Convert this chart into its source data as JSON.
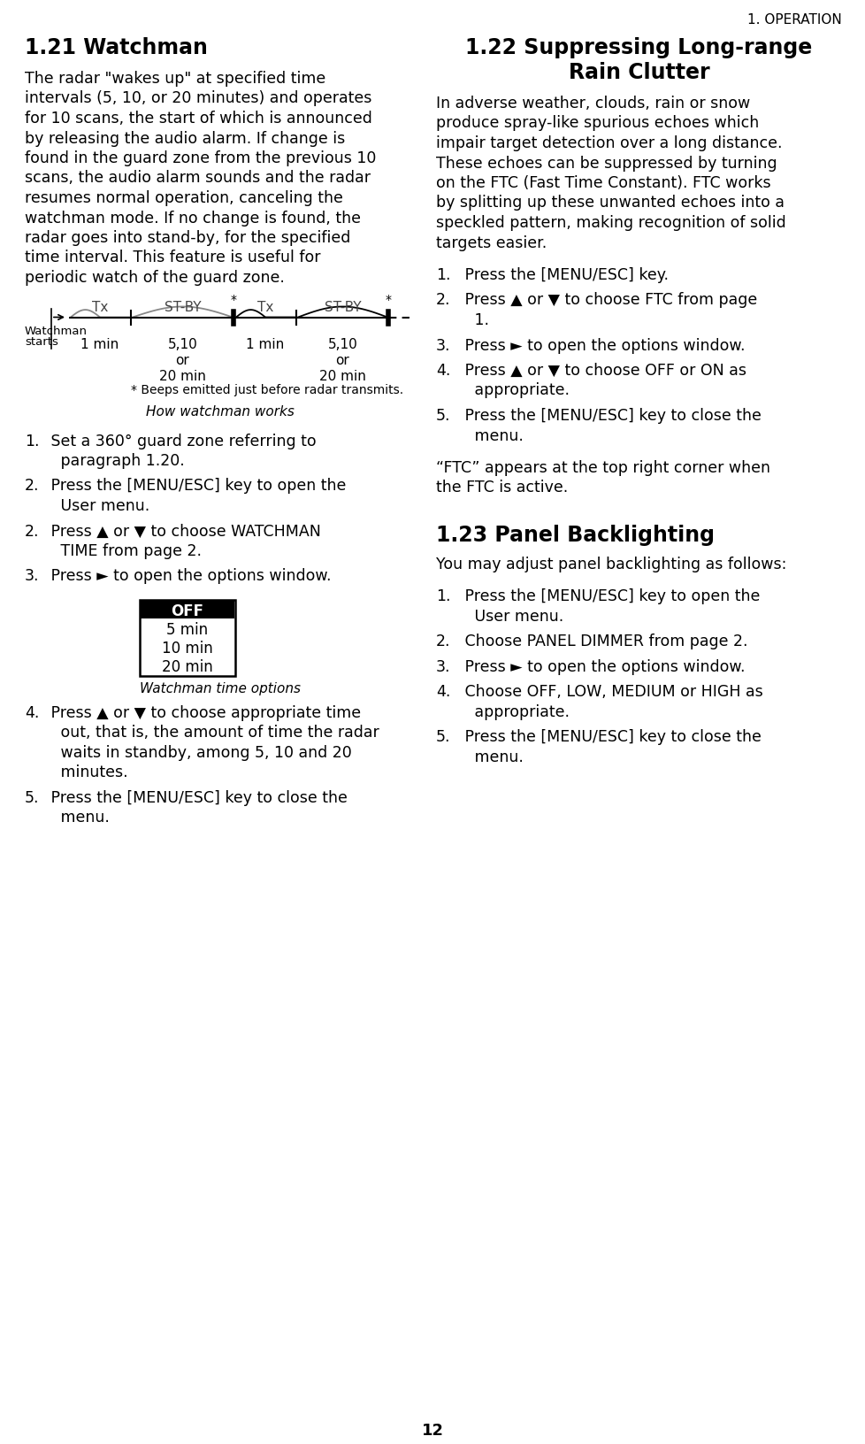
{
  "page_header": "1. OPERATION",
  "page_number": "12",
  "background_color": "#ffffff",
  "text_color": "#000000",
  "section_121_title": "1.21 Watchman",
  "section_121_body_lines": [
    "The radar \"wakes up\" at specified time",
    "intervals (5, 10, or 20 minutes) and operates",
    "for 10 scans, the start of which is announced",
    "by releasing the audio alarm. If change is",
    "found in the guard zone from the previous 10",
    "scans, the audio alarm sounds and the radar",
    "resumes normal operation, canceling the",
    "watchman mode. If no change is found, the",
    "radar goes into stand-by, for the specified",
    "time interval. This feature is useful for",
    "periodic watch of the guard zone."
  ],
  "diagram_caption": "How watchman works",
  "diagram_note": "* Beeps emitted just before radar transmits.",
  "diagram_label_watchman": "Watchman\nstarts",
  "section_121_steps": [
    [
      "1.",
      " Set a 360° guard zone referring to\n   paragraph 1.20."
    ],
    [
      "2.",
      " Press the [MENU/ESC] key to open the\n   User menu."
    ],
    [
      "2.",
      " Press ▲ or ▼ to choose WATCHMAN\n   TIME from page 2."
    ],
    [
      "3.",
      " Press ► to open the options window."
    ]
  ],
  "menu_box_items": [
    "OFF",
    "5 min",
    "10 min",
    "20 min"
  ],
  "menu_caption": "Watchman time options",
  "section_121_steps2": [
    [
      "4.",
      " Press ▲ or ▼ to choose appropriate time\n   out, that is, the amount of time the radar\n   waits in standby, among 5, 10 and 20\n   minutes."
    ],
    [
      "5.",
      " Press the [MENU/ESC] key to close the\n   menu."
    ]
  ],
  "section_122_title_line1": "1.22 Suppressing Long-range",
  "section_122_title_line2": "Rain Clutter",
  "section_122_body_lines": [
    "In adverse weather, clouds, rain or snow",
    "produce spray-like spurious echoes which",
    "impair target detection over a long distance.",
    "These echoes can be suppressed by turning",
    "on the FTC (Fast Time Constant). FTC works",
    "by splitting up these unwanted echoes into a",
    "speckled pattern, making recognition of solid",
    "targets easier."
  ],
  "section_122_steps": [
    [
      "1.",
      " Press the [MENU/ESC] key."
    ],
    [
      "2.",
      " Press ▲ or ▼ to choose FTC from page\n   1."
    ],
    [
      "3.",
      " Press ► to open the options window."
    ],
    [
      "4.",
      " Press ▲ or ▼ to choose OFF or ON as\n   appropriate."
    ],
    [
      "5.",
      " Press the [MENU/ESC] key to close the\n   menu."
    ]
  ],
  "section_122_note_lines": [
    "“FTC” appears at the top right corner when",
    "the FTC is active."
  ],
  "section_123_title": "1.23 Panel Backlighting",
  "section_123_body": "You may adjust panel backlighting as follows:",
  "section_123_steps": [
    [
      "1.",
      " Press the [MENU/ESC] key to open the\n   User menu."
    ],
    [
      "2.",
      " Choose PANEL DIMMER from page 2."
    ],
    [
      "3.",
      " Press ► to open the options window."
    ],
    [
      "4.",
      " Choose OFF, LOW, MEDIUM or HIGH as\n   appropriate."
    ],
    [
      "5.",
      " Press the [MENU/ESC] key to close the\n   menu."
    ]
  ]
}
